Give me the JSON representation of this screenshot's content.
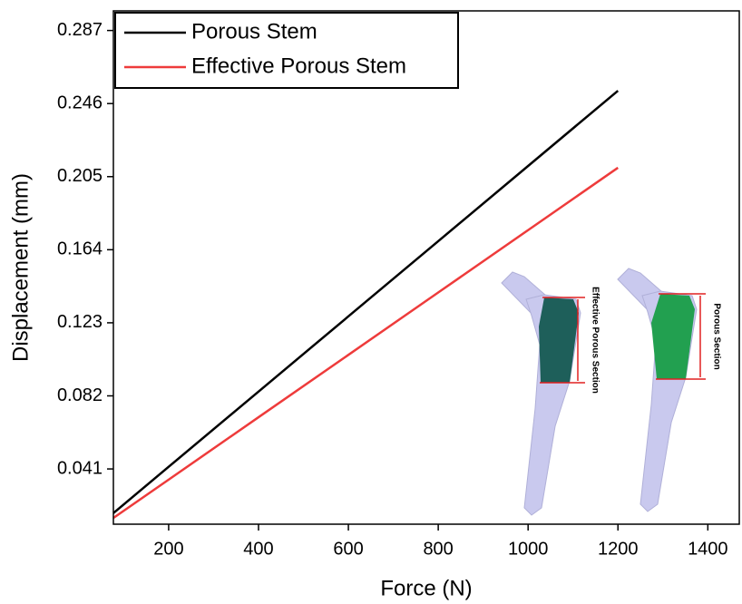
{
  "chart_data": {
    "type": "line",
    "x_label": "Force (N)",
    "y_label": "Displacement (mm)",
    "x": [
      77,
      200,
      400,
      600,
      800,
      1000,
      1200
    ],
    "series": [
      {
        "name": "Porous Stem",
        "color": "#000000",
        "values": [
          0.0162,
          0.0422,
          0.0844,
          0.1266,
          0.1688,
          0.211,
          0.2532
        ]
      },
      {
        "name": "Effective Porous Stem",
        "color": "#ee3b3b",
        "values": [
          0.0135,
          0.035,
          0.07,
          0.105,
          0.14,
          0.175,
          0.21
        ]
      }
    ],
    "xlim": [
      77,
      1470
    ],
    "xticks": [
      200,
      400,
      600,
      800,
      1000,
      1200,
      1400
    ],
    "ylim": [
      0.01,
      0.298
    ],
    "yticks": [
      0.041,
      0.082,
      0.123,
      0.164,
      0.205,
      0.246,
      0.287
    ],
    "legend": "top-left",
    "annotations": [
      "Effective Porous Section",
      "Porous Section"
    ]
  }
}
